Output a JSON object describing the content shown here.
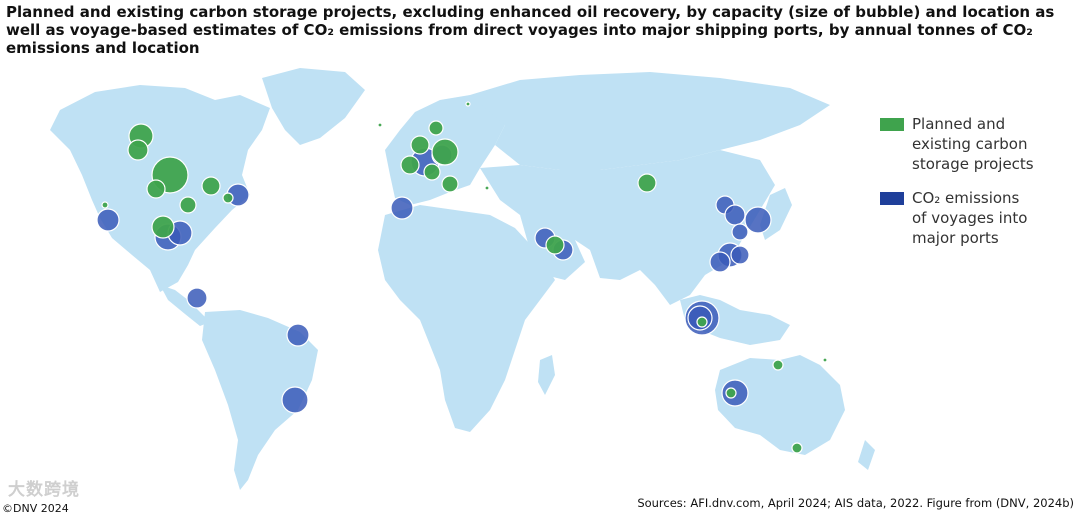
{
  "title": "Planned and existing carbon storage projects, excluding enhanced oil recovery, by capacity (size of bubble) and location as well as voyage-based estimates of CO₂ emissions from direct voyages into major shipping ports, by annual tonnes of CO₂ emissions and location",
  "legend": [
    {
      "label": "Planned and\nexisting carbon\nstorage projects",
      "color": "#3fa34d",
      "icon": "green-square"
    },
    {
      "label": "CO₂ emissions\nof voyages into\nmajor ports",
      "color": "#1f3f9a",
      "icon": "blue-square"
    }
  ],
  "source": "Sources: AFI.dnv.com, April 2024; AIS data, 2022. Figure from (DNV, 2024b)",
  "copyright": "©DNV 2024",
  "watermark": "大数跨境",
  "colors": {
    "land": "#bfe1f4",
    "storage": "#3fa34d",
    "emissions": "#3a5bb8"
  }
}
